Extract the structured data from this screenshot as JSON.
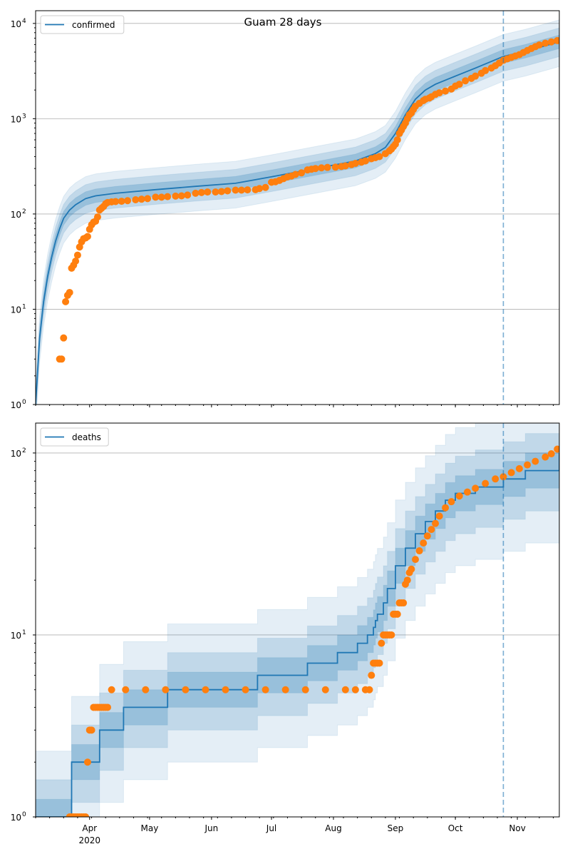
{
  "chart_data": [
    {
      "type": "line",
      "title": "Guam 28 days",
      "legend": {
        "label": "confirmed",
        "placement": "top-left"
      },
      "yscale": "log",
      "ylim": [
        1,
        13600
      ],
      "yticks": [
        {
          "exp": "0"
        },
        {
          "exp": "1"
        },
        {
          "exp": "2"
        },
        {
          "exp": "3"
        },
        {
          "exp": "4"
        }
      ],
      "y_values": [
        1,
        10,
        100,
        1000,
        10000
      ],
      "xlim_days_since_mar5": [
        0,
        262
      ],
      "forecast_start_day": 234,
      "colors": {
        "model": "#1f77b4",
        "observed": "#ff7f0e",
        "grid": "#b0b0b0"
      },
      "model_median": {
        "x": [
          0,
          2,
          4,
          6,
          8,
          10,
          12,
          14,
          17,
          20,
          25,
          30,
          40,
          60,
          80,
          100,
          120,
          140,
          160,
          170,
          175,
          180,
          185,
          190,
          195,
          200,
          210,
          220,
          234,
          245,
          262
        ],
        "y": [
          1,
          5,
          12,
          22,
          35,
          52,
          70,
          90,
          110,
          125,
          145,
          155,
          165,
          180,
          195,
          210,
          250,
          300,
          360,
          430,
          500,
          700,
          1100,
          1600,
          2000,
          2300,
          2800,
          3400,
          4500,
          5100,
          6400
        ]
      },
      "bands": [
        {
          "lo": 0.85,
          "hi": 1.18,
          "opacity": 0.25
        },
        {
          "lo": 0.7,
          "hi": 1.4,
          "opacity": 0.18
        },
        {
          "lo": 0.55,
          "hi": 1.7,
          "opacity": 0.12
        }
      ],
      "observed": {
        "x": [
          12,
          13,
          14,
          15,
          16,
          17,
          18,
          19,
          20,
          21,
          22,
          23,
          24,
          25,
          26,
          27,
          28,
          29,
          30,
          31,
          32,
          33,
          34,
          35,
          36,
          38,
          40,
          43,
          46,
          50,
          53,
          56,
          60,
          63,
          66,
          70,
          73,
          76,
          80,
          83,
          86,
          90,
          93,
          96,
          100,
          103,
          106,
          110,
          112,
          115,
          118,
          120,
          122,
          124,
          126,
          128,
          130,
          133,
          136,
          138,
          140,
          143,
          146,
          150,
          153,
          155,
          158,
          160,
          163,
          165,
          168,
          170,
          172,
          175,
          177,
          178,
          179,
          180,
          181,
          182,
          183,
          184,
          185,
          186,
          187,
          188,
          189,
          190,
          192,
          194,
          195,
          197,
          198,
          200,
          202,
          205,
          208,
          210,
          212,
          215,
          218,
          220,
          223,
          225,
          228,
          230,
          232,
          234,
          236,
          238,
          240,
          242,
          244,
          246,
          248,
          250,
          252,
          255,
          258,
          261
        ],
        "y": [
          3,
          3,
          5,
          12,
          14,
          15,
          27,
          29,
          32,
          37,
          45,
          51,
          55,
          56,
          58,
          69,
          77,
          82,
          84,
          93,
          110,
          115,
          120,
          128,
          132,
          134,
          135,
          136,
          138,
          141,
          143,
          145,
          150,
          150,
          152,
          154,
          155,
          158,
          165,
          168,
          170,
          170,
          172,
          175,
          178,
          178,
          179,
          180,
          185,
          190,
          215,
          218,
          225,
          235,
          245,
          250,
          260,
          270,
          290,
          295,
          300,
          305,
          308,
          310,
          315,
          320,
          330,
          340,
          350,
          360,
          380,
          390,
          400,
          430,
          460,
          480,
          510,
          540,
          600,
          700,
          760,
          830,
          900,
          1000,
          1100,
          1150,
          1250,
          1350,
          1450,
          1550,
          1600,
          1650,
          1700,
          1800,
          1870,
          1950,
          2050,
          2200,
          2300,
          2500,
          2650,
          2800,
          3000,
          3200,
          3400,
          3600,
          3850,
          4100,
          4250,
          4400,
          4550,
          4700,
          4950,
          5200,
          5450,
          5700,
          5950,
          6200,
          6400,
          6600
        ]
      }
    },
    {
      "type": "line",
      "legend": {
        "label": "deaths",
        "placement": "top-left"
      },
      "yscale": "log",
      "ylim": [
        1,
        146
      ],
      "yticks": [
        {
          "exp": "0"
        },
        {
          "exp": "1"
        },
        {
          "exp": "2"
        }
      ],
      "y_values": [
        1,
        10,
        100
      ],
      "xlim_days_since_mar5": [
        0,
        262
      ],
      "xticks": [
        {
          "day": 27,
          "label": "Apr",
          "sub": "2020"
        },
        {
          "day": 57,
          "label": "May"
        },
        {
          "day": 88,
          "label": "Jun"
        },
        {
          "day": 118,
          "label": "Jul"
        },
        {
          "day": 149,
          "label": "Aug"
        },
        {
          "day": 180,
          "label": "Sep"
        },
        {
          "day": 210,
          "label": "Oct"
        },
        {
          "day": 241,
          "label": "Nov"
        }
      ],
      "forecast_start_day": 234,
      "model_median_steps": {
        "x": [
          0,
          18,
          32,
          44,
          66,
          111,
          136,
          151,
          161,
          166,
          169,
          170,
          171,
          174,
          176,
          180,
          185,
          190,
          195,
          200,
          205,
          210,
          220,
          234,
          245,
          262
        ],
        "y": [
          1,
          2,
          3,
          4,
          5,
          6,
          7,
          8,
          9,
          10,
          11,
          12,
          13,
          15,
          18,
          24,
          30,
          36,
          42,
          48,
          55,
          60,
          65,
          72,
          80,
          100
        ]
      },
      "bands": [
        {
          "lo": 0.8,
          "hi": 1.25,
          "opacity": 0.25
        },
        {
          "lo": 0.6,
          "hi": 1.6,
          "opacity": 0.18
        },
        {
          "lo": 0.4,
          "hi": 2.3,
          "opacity": 0.12
        }
      ],
      "observed": {
        "x": [
          17,
          18,
          19,
          20,
          21,
          22,
          23,
          24,
          25,
          26,
          27,
          28,
          29,
          30,
          31,
          32,
          33,
          34,
          35,
          36,
          38,
          45,
          55,
          65,
          75,
          85,
          95,
          105,
          115,
          125,
          135,
          145,
          155,
          160,
          165,
          167,
          168,
          169,
          170,
          171,
          172,
          173,
          174,
          175,
          176,
          177,
          178,
          179,
          180,
          181,
          182,
          183,
          184,
          185,
          186,
          187,
          188,
          190,
          192,
          194,
          196,
          198,
          200,
          202,
          205,
          208,
          212,
          216,
          220,
          225,
          230,
          234,
          238,
          242,
          246,
          250,
          255,
          258,
          261
        ],
        "y": [
          1,
          1,
          1,
          1,
          1,
          1,
          1,
          1,
          1,
          2,
          3,
          3,
          4,
          4,
          4,
          4,
          4,
          4,
          4,
          4,
          5,
          5,
          5,
          5,
          5,
          5,
          5,
          5,
          5,
          5,
          5,
          5,
          5,
          5,
          5,
          5,
          6,
          7,
          7,
          7,
          7,
          9,
          10,
          10,
          10,
          10,
          10,
          13,
          13,
          13,
          15,
          15,
          15,
          19,
          20,
          22,
          23,
          26,
          29,
          32,
          35,
          38,
          41,
          45,
          50,
          54,
          58,
          61,
          64,
          68,
          72,
          74,
          78,
          82,
          86,
          90,
          95,
          99,
          105
        ]
      }
    }
  ]
}
